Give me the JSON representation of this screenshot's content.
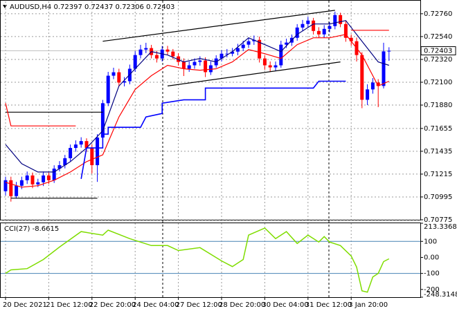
{
  "chart_data": [
    {
      "type": "candlestick",
      "title": "AUDUSD,H4  0.72397 0.72437 0.72306 0.72403",
      "open": [
        0.7105,
        0.71156,
        0.71003,
        0.71103,
        0.71156,
        0.71202,
        0.71116,
        0.71136,
        0.71202,
        0.71156,
        0.71268,
        0.71301,
        0.71368,
        0.71467,
        0.715,
        0.71533,
        0.71467,
        0.71301,
        0.71567,
        0.71898,
        0.72163,
        0.72196,
        0.72097,
        0.7211,
        0.7223,
        0.72362,
        0.72415,
        0.72429,
        0.72362,
        0.72329,
        0.72415,
        0.72395,
        0.72349,
        0.72296,
        0.7223,
        0.72263,
        0.72296,
        0.72309,
        0.72197,
        0.72263,
        0.72329,
        0.72375,
        0.72375,
        0.72395,
        0.72429,
        0.72462,
        0.72495,
        0.72508,
        0.72329,
        0.72263,
        0.72243,
        0.72263,
        0.72462,
        0.72482,
        0.72528,
        0.72627,
        0.72661,
        0.72694,
        0.72594,
        0.72561,
        0.72614,
        0.72641,
        0.72747,
        0.72661,
        0.72528,
        0.72495,
        0.72362,
        0.71931,
        0.72031,
        0.72097,
        0.72064,
        0.72397
      ],
      "high": [
        0.7119,
        0.7119,
        0.7114,
        0.7119,
        0.7124,
        0.7123,
        0.7117,
        0.7124,
        0.7123,
        0.713,
        0.7134,
        0.714,
        0.715,
        0.7154,
        0.7157,
        0.7156,
        0.715,
        0.716,
        0.7193,
        0.722,
        0.7224,
        0.7223,
        0.7215,
        0.7227,
        0.724,
        0.7246,
        0.7248,
        0.7246,
        0.724,
        0.7245,
        0.7245,
        0.7242,
        0.7238,
        0.7233,
        0.723,
        0.7233,
        0.7235,
        0.7234,
        0.723,
        0.7236,
        0.7241,
        0.7242,
        0.7243,
        0.7247,
        0.725,
        0.7253,
        0.7255,
        0.7254,
        0.7236,
        0.723,
        0.723,
        0.725,
        0.7252,
        0.7256,
        0.7266,
        0.727,
        0.7273,
        0.7272,
        0.7263,
        0.7265,
        0.7268,
        0.7278,
        0.7277,
        0.7269,
        0.7256,
        0.7253,
        0.7239,
        0.7208,
        0.7214,
        0.7213,
        0.7248,
        0.72437
      ],
      "low": [
        0.7101,
        0.7095,
        0.7098,
        0.7107,
        0.7112,
        0.7108,
        0.7109,
        0.711,
        0.7112,
        0.7113,
        0.7124,
        0.7127,
        0.7134,
        0.7143,
        0.7147,
        0.7143,
        0.7122,
        0.7114,
        0.7154,
        0.7187,
        0.7213,
        0.7206,
        0.7206,
        0.7208,
        0.722,
        0.7233,
        0.7238,
        0.7233,
        0.7229,
        0.723,
        0.7236,
        0.7232,
        0.7226,
        0.7216,
        0.722,
        0.7223,
        0.7226,
        0.7215,
        0.7217,
        0.7224,
        0.723,
        0.7234,
        0.7235,
        0.7236,
        0.724,
        0.7243,
        0.7246,
        0.7229,
        0.7222,
        0.722,
        0.7221,
        0.7224,
        0.7243,
        0.7245,
        0.725,
        0.7259,
        0.7263,
        0.7256,
        0.7253,
        0.7253,
        0.7258,
        0.7261,
        0.7263,
        0.7249,
        0.7245,
        0.723,
        0.7185,
        0.7188,
        0.7199,
        0.7186,
        0.7204,
        0.72306
      ],
      "close": [
        0.71156,
        0.71003,
        0.71103,
        0.71156,
        0.71202,
        0.71116,
        0.71136,
        0.71202,
        0.71156,
        0.71268,
        0.71301,
        0.71368,
        0.71467,
        0.715,
        0.71533,
        0.71467,
        0.71301,
        0.71567,
        0.71898,
        0.72163,
        0.72196,
        0.72097,
        0.7211,
        0.7223,
        0.72362,
        0.72415,
        0.72429,
        0.72362,
        0.72329,
        0.72415,
        0.72395,
        0.72349,
        0.72296,
        0.7223,
        0.72263,
        0.72296,
        0.72309,
        0.72197,
        0.72263,
        0.72329,
        0.72375,
        0.72375,
        0.72395,
        0.72429,
        0.72462,
        0.72495,
        0.72508,
        0.72329,
        0.72263,
        0.72243,
        0.72263,
        0.72462,
        0.72482,
        0.72528,
        0.72627,
        0.72661,
        0.72694,
        0.72594,
        0.72561,
        0.72614,
        0.72641,
        0.72747,
        0.72661,
        0.72528,
        0.72495,
        0.72362,
        0.71931,
        0.72031,
        0.72097,
        0.72064,
        0.72397,
        0.72403
      ],
      "up_color": "#0000ff",
      "down_color": "#ff0000",
      "series": [
        {
          "color": "#000080",
          "x": [
            0,
            3,
            6,
            9,
            12,
            15,
            18,
            21,
            24,
            27,
            30,
            33,
            36,
            39,
            42,
            45,
            48,
            51,
            54,
            57,
            60,
            63,
            66,
            69,
            71
          ],
          "values": [
            0.715,
            0.71315,
            0.71235,
            0.71235,
            0.71335,
            0.71467,
            0.71633,
            0.72064,
            0.7223,
            0.72395,
            0.72362,
            0.72296,
            0.72329,
            0.72296,
            0.72395,
            0.72528,
            0.72462,
            0.72395,
            0.72561,
            0.72661,
            0.72661,
            0.72694,
            0.72495,
            0.72296,
            0.72263
          ]
        },
        {
          "color": "#ff0000",
          "x": [
            0,
            3,
            6,
            9,
            12,
            15,
            18,
            21,
            24,
            27,
            30,
            33,
            36,
            39,
            42,
            45,
            48,
            51,
            54,
            57,
            60,
            63,
            66,
            69,
            71
          ],
          "values": [
            0.71136,
            0.71089,
            0.71103,
            0.71156,
            0.71235,
            0.71335,
            0.71401,
            0.71766,
            0.72031,
            0.72163,
            0.72263,
            0.7223,
            0.72216,
            0.7223,
            0.72296,
            0.72415,
            0.72375,
            0.72329,
            0.72462,
            0.72528,
            0.72528,
            0.72561,
            0.72362,
            0.72064,
            0.7211
          ]
        },
        {
          "color": "#0000ff",
          "x": [
            14,
            15,
            18,
            18,
            19,
            19,
            25,
            26,
            29,
            29,
            33,
            37,
            37,
            57,
            58,
            63
          ],
          "values": [
            0.71169,
            0.71467,
            0.71467,
            0.716,
            0.716,
            0.71666,
            0.71666,
            0.71766,
            0.71799,
            0.71898,
            0.71931,
            0.71931,
            0.72044,
            0.72044,
            0.7211,
            0.7211
          ]
        },
        {
          "color": "#000000",
          "x": [
            0,
            18
          ],
          "values": [
            0.71812,
            0.71812
          ]
        },
        {
          "color": "#ff0000",
          "x": [
            0,
            1,
            13
          ],
          "values": [
            0.71898,
            0.71679,
            0.71679
          ]
        },
        {
          "color": "#000000",
          "x": [
            1,
            17
          ],
          "values": [
            0.70983,
            0.70983
          ]
        },
        {
          "color": "#ff0000",
          "x": [
            64,
            71
          ],
          "values": [
            0.72601,
            0.72601
          ]
        },
        {
          "color": "#000000",
          "x": [
            18,
            61
          ],
          "values": [
            0.72495,
            0.72793
          ]
        },
        {
          "color": "#000000",
          "x": [
            30,
            62
          ],
          "values": [
            0.72064,
            0.72296
          ]
        }
      ],
      "ylim": [
        0.70775,
        0.72879
      ],
      "yticks": [
        {
          "value": 0.7276,
          "label": "0.72760"
        },
        {
          "value": 0.7254,
          "label": "0.72540"
        },
        {
          "value": 0.7232,
          "label": "0.72320"
        },
        {
          "value": 0.721,
          "label": "0.72100"
        },
        {
          "value": 0.7188,
          "label": "0.71880"
        },
        0.71655,
        0.71435,
        0.71215,
        0.70995,
        0.70775
      ],
      "xticks": [
        {
          "value": 0,
          "label": "20 Dec 2021"
        },
        {
          "value": 8,
          "label": "21 Dec 12:00"
        },
        {
          "value": 16,
          "label": "22 Dec 20:00"
        },
        {
          "value": 24,
          "label": "24 Dec 04:00"
        },
        {
          "value": 32,
          "label": "27 Dec 12:00"
        },
        {
          "value": 40,
          "label": "28 Dec 20:00"
        },
        {
          "value": 48,
          "label": "30 Dec 04:00"
        },
        {
          "value": 56,
          "label": "31 Dec 12:00"
        },
        {
          "value": 64,
          "label": "3 Jan 20:00"
        }
      ],
      "grid": true,
      "last_price": 0.72403
    },
    {
      "type": "line",
      "title": "CCI(27) -8.6615",
      "x": [
        0,
        1,
        4,
        7,
        10,
        14,
        18,
        19,
        23,
        27,
        30,
        32,
        36,
        40,
        42,
        44,
        45,
        48,
        50,
        52,
        54,
        56,
        58,
        59,
        60,
        62,
        64,
        65,
        66,
        67,
        68,
        69,
        70,
        71
      ],
      "values": [
        -100,
        -78,
        -70,
        -13,
        65,
        161,
        139,
        170,
        117,
        74,
        74,
        43,
        61,
        -22,
        -57,
        -13,
        139,
        183,
        117,
        161,
        87,
        139,
        96,
        130,
        96,
        74,
        9,
        -60,
        -209,
        -217,
        -122,
        -100,
        -26,
        -8.6615
      ],
      "color": "#7fdd00",
      "ylim": [
        -248.3148,
        213.3368
      ],
      "yticks": [
        213.3368,
        100,
        {
          "value": 0,
          "label": "0.00"
        },
        -100,
        -200,
        -248.3148
      ],
      "levels": [
        100,
        -100
      ],
      "grid": true
    }
  ]
}
